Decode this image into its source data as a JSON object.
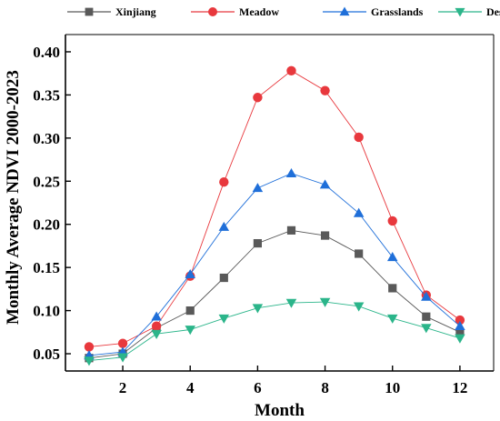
{
  "chart_data": {
    "type": "line",
    "xlabel": "Month",
    "ylabel": "Monthly Average NDVI 2000-2023",
    "xlim": [
      0.3,
      13.0
    ],
    "ylim": [
      0.03,
      0.42
    ],
    "xticks": [
      2,
      4,
      6,
      8,
      10,
      12
    ],
    "xtick_labels": [
      "2",
      "4",
      "6",
      "8",
      "10",
      "12"
    ],
    "yticks": [
      0.05,
      0.1,
      0.15,
      0.2,
      0.25,
      0.3,
      0.35,
      0.4
    ],
    "ytick_labels": [
      "0.05",
      "0.10",
      "0.15",
      "0.20",
      "0.25",
      "0.30",
      "0.35",
      "0.40"
    ],
    "grid": false,
    "legend_position": "top",
    "x": [
      1,
      2,
      3,
      4,
      5,
      6,
      7,
      8,
      9,
      10,
      11,
      12
    ],
    "series": [
      {
        "name": "Xinjiang",
        "marker": "square",
        "color": "#595959",
        "values": [
          0.045,
          0.05,
          0.08,
          0.1,
          0.138,
          0.178,
          0.193,
          0.187,
          0.166,
          0.126,
          0.093,
          0.075
        ]
      },
      {
        "name": "Meadow",
        "marker": "circle",
        "color": "#e8383d",
        "values": [
          0.058,
          0.062,
          0.082,
          0.14,
          0.249,
          0.347,
          0.378,
          0.355,
          0.301,
          0.204,
          0.118,
          0.089
        ]
      },
      {
        "name": "Grasslands",
        "marker": "triangle-up",
        "color": "#1f6fd9",
        "values": [
          0.048,
          0.052,
          0.093,
          0.142,
          0.197,
          0.242,
          0.259,
          0.246,
          0.213,
          0.162,
          0.116,
          0.082
        ]
      },
      {
        "name": "Desert",
        "marker": "triangle-down",
        "color": "#2bb58a",
        "values": [
          0.042,
          0.046,
          0.073,
          0.078,
          0.091,
          0.103,
          0.109,
          0.11,
          0.105,
          0.091,
          0.08,
          0.068
        ]
      }
    ]
  }
}
